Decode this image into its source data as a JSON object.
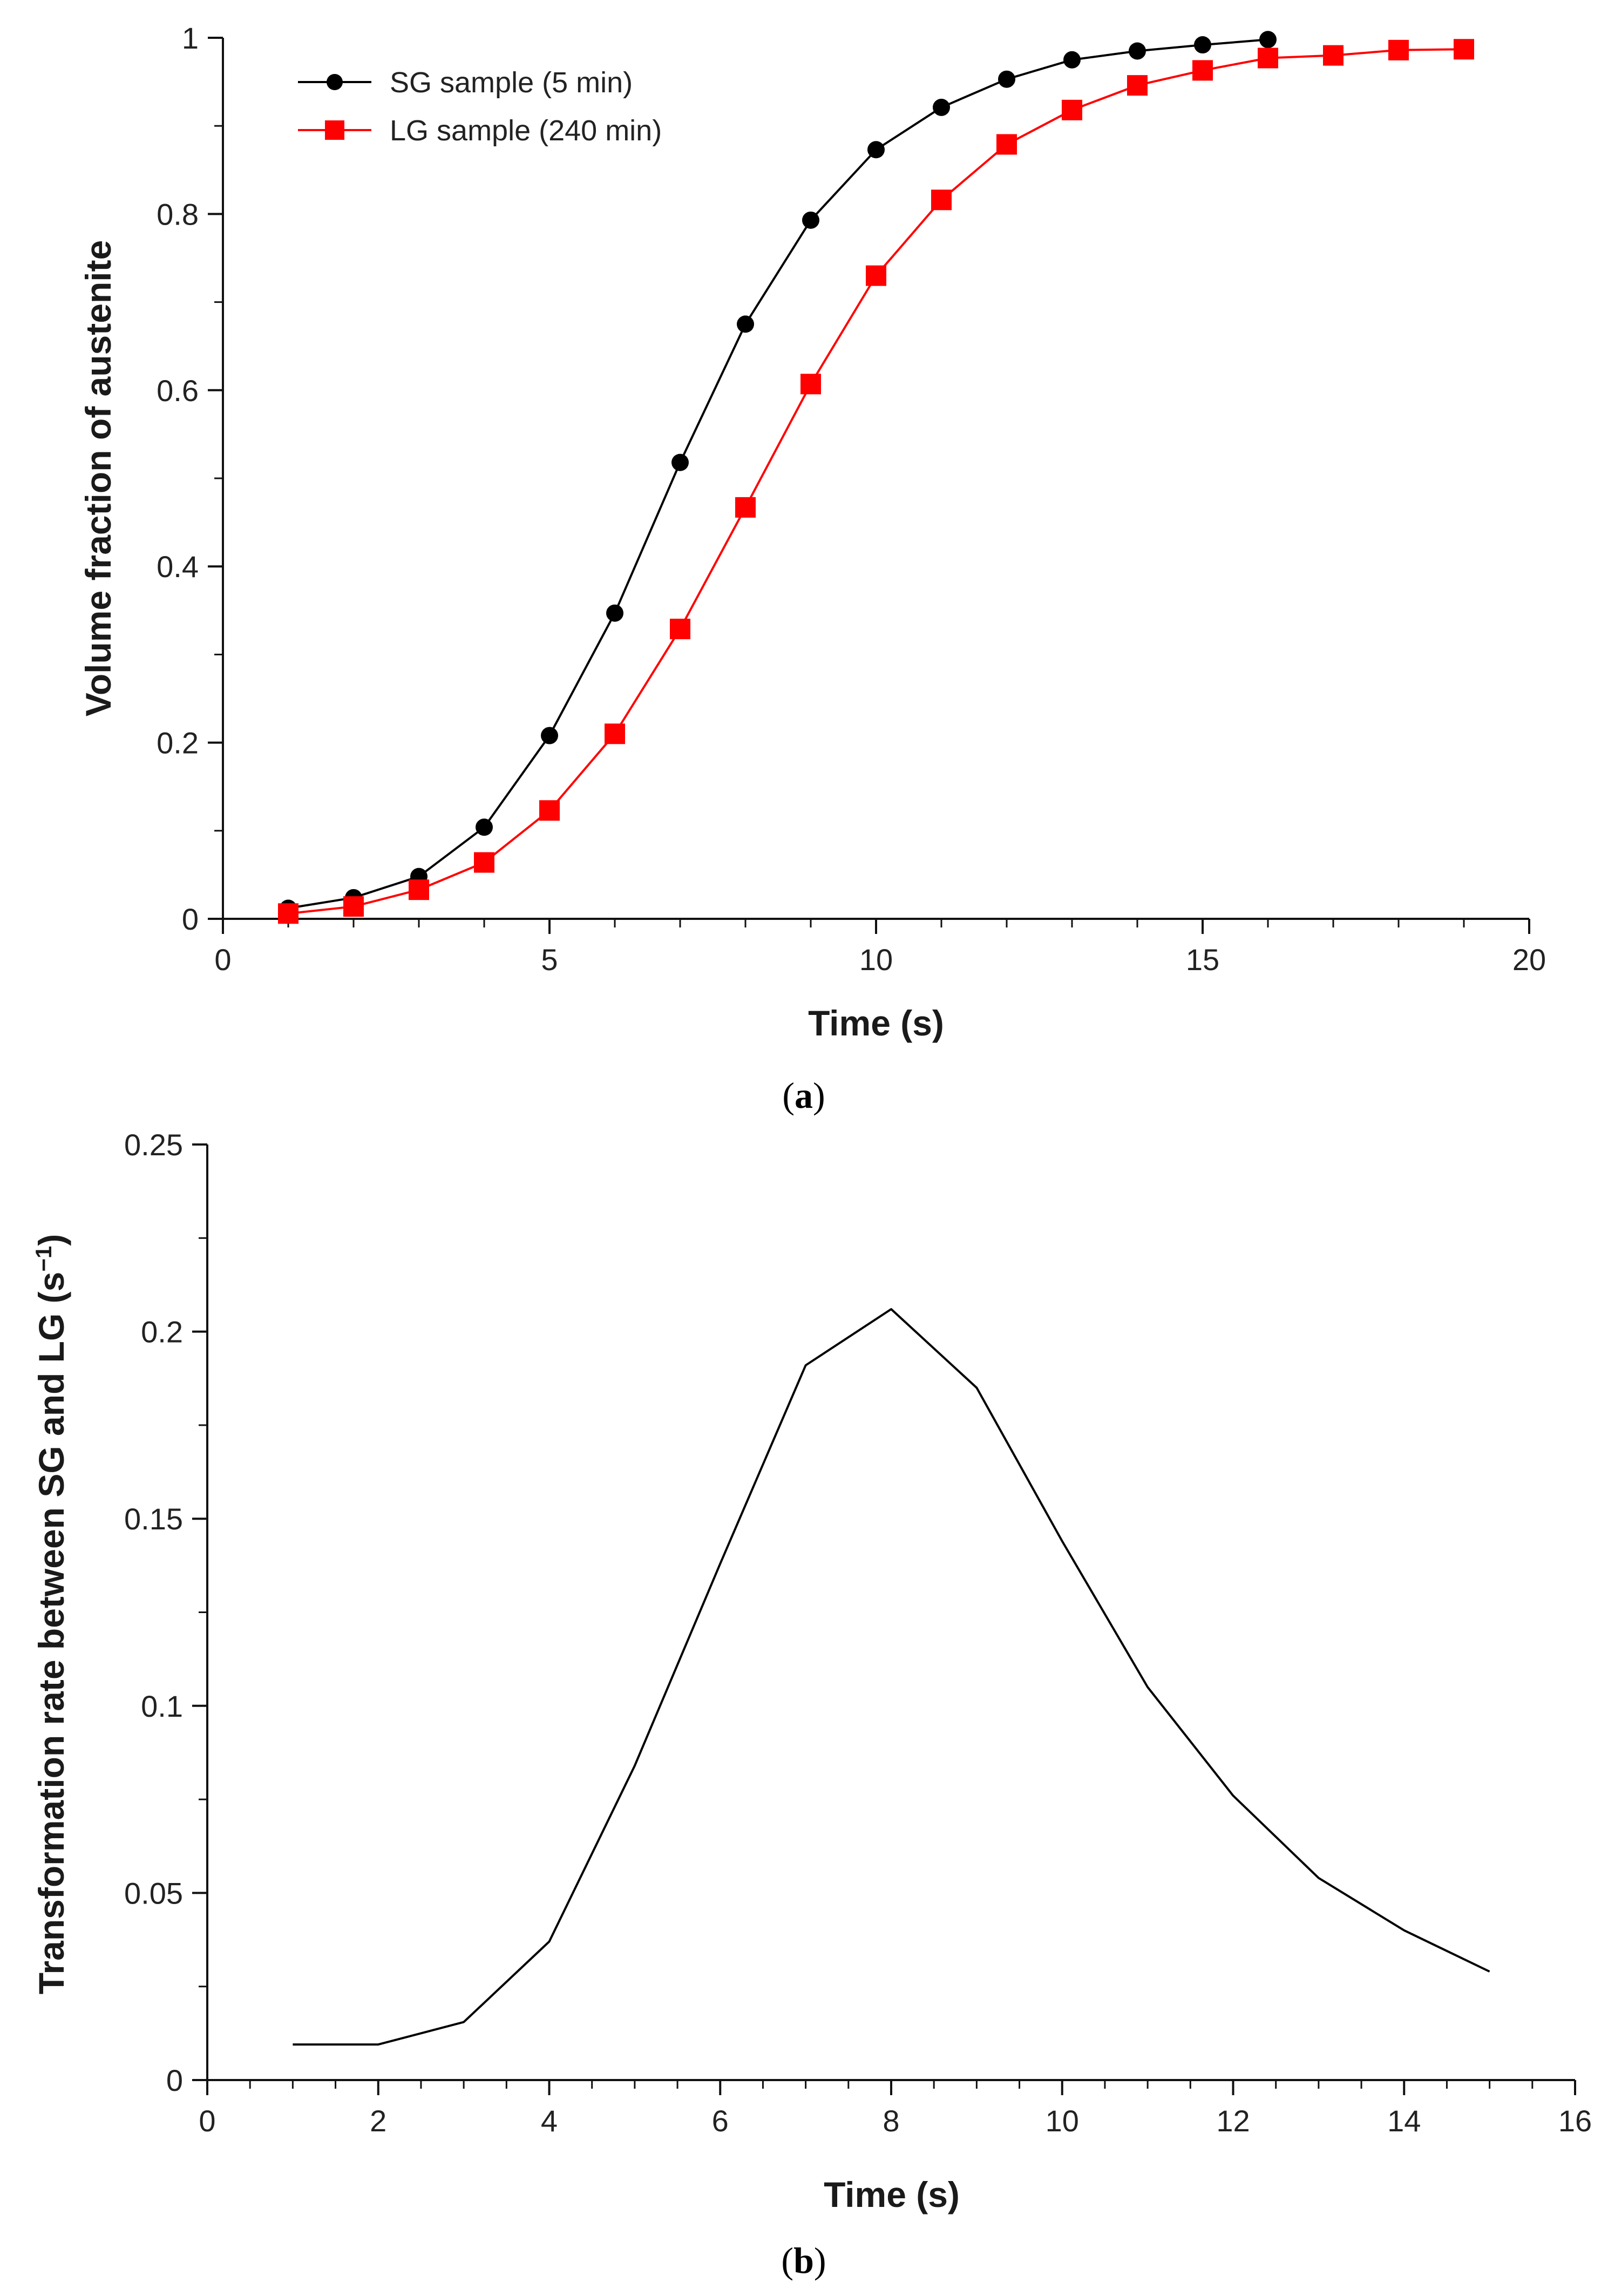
{
  "chart_data": [
    {
      "type": "line",
      "caption": "(a)",
      "caption_open": "(",
      "caption_letter": "a",
      "caption_close": ")",
      "title": "",
      "xlabel": "Time (s)",
      "ylabel": "Volume fraction of austenite",
      "xlim": [
        0,
        20
      ],
      "ylim": [
        0,
        1
      ],
      "xticks": [
        0,
        5,
        10,
        15,
        20
      ],
      "xtick_labels": [
        "0",
        "5",
        "10",
        "15",
        "20"
      ],
      "yticks": [
        0,
        0.2,
        0.4,
        0.6,
        0.8,
        1
      ],
      "ytick_labels": [
        "0",
        "0.2",
        "0.4",
        "0.6",
        "0.8",
        "1"
      ],
      "legend_position": "top-left",
      "grid": false,
      "series": [
        {
          "name": "SG sample (5 min)",
          "color": "#000000",
          "marker": "circle",
          "x": [
            1,
            2,
            3,
            4,
            5,
            6,
            7,
            8,
            9,
            10,
            11,
            12,
            13,
            14,
            15,
            16
          ],
          "values": [
            0.012,
            0.024,
            0.048,
            0.104,
            0.208,
            0.347,
            0.518,
            0.675,
            0.793,
            0.873,
            0.921,
            0.953,
            0.975,
            0.985,
            0.992,
            0.998
          ]
        },
        {
          "name": "LG sample (240 min)",
          "color": "#ff0000",
          "marker": "square",
          "x": [
            1,
            2,
            3,
            4,
            5,
            6,
            7,
            8,
            9,
            10,
            11,
            12,
            13,
            14,
            15,
            16,
            17,
            18,
            19
          ],
          "values": [
            0.006,
            0.014,
            0.033,
            0.064,
            0.123,
            0.21,
            0.329,
            0.467,
            0.607,
            0.73,
            0.816,
            0.879,
            0.918,
            0.946,
            0.963,
            0.977,
            0.98,
            0.986,
            0.987
          ]
        }
      ]
    },
    {
      "type": "line",
      "caption": "(b)",
      "caption_open": "(",
      "caption_letter": "b",
      "caption_close": ")",
      "title": "",
      "xlabel": "Time (s)",
      "ylabel": "Transformation rate between SG and LG (s",
      "ylabel_sup": "−1",
      "ylabel_close": ")",
      "xlim": [
        0,
        16
      ],
      "ylim": [
        0,
        0.25
      ],
      "xticks": [
        0,
        2,
        4,
        6,
        8,
        10,
        12,
        14,
        16
      ],
      "xtick_labels": [
        "0",
        "2",
        "4",
        "6",
        "8",
        "10",
        "12",
        "14",
        "16"
      ],
      "yticks": [
        0,
        0.05,
        0.1,
        0.15,
        0.2,
        0.25
      ],
      "ytick_labels": [
        "0",
        "0.05",
        "0.1",
        "0.15",
        "0.2",
        "0.25"
      ],
      "grid": false,
      "series": [
        {
          "name": "Transformation rate",
          "color": "#000000",
          "marker": "none",
          "x": [
            1,
            2,
            3,
            4,
            5,
            6,
            7,
            8,
            9,
            10,
            11,
            12,
            13,
            14,
            15
          ],
          "values": [
            0.0095,
            0.0095,
            0.0155,
            0.037,
            0.084,
            0.138,
            0.191,
            0.206,
            0.185,
            0.144,
            0.105,
            0.076,
            0.054,
            0.04,
            0.029
          ]
        }
      ]
    }
  ]
}
